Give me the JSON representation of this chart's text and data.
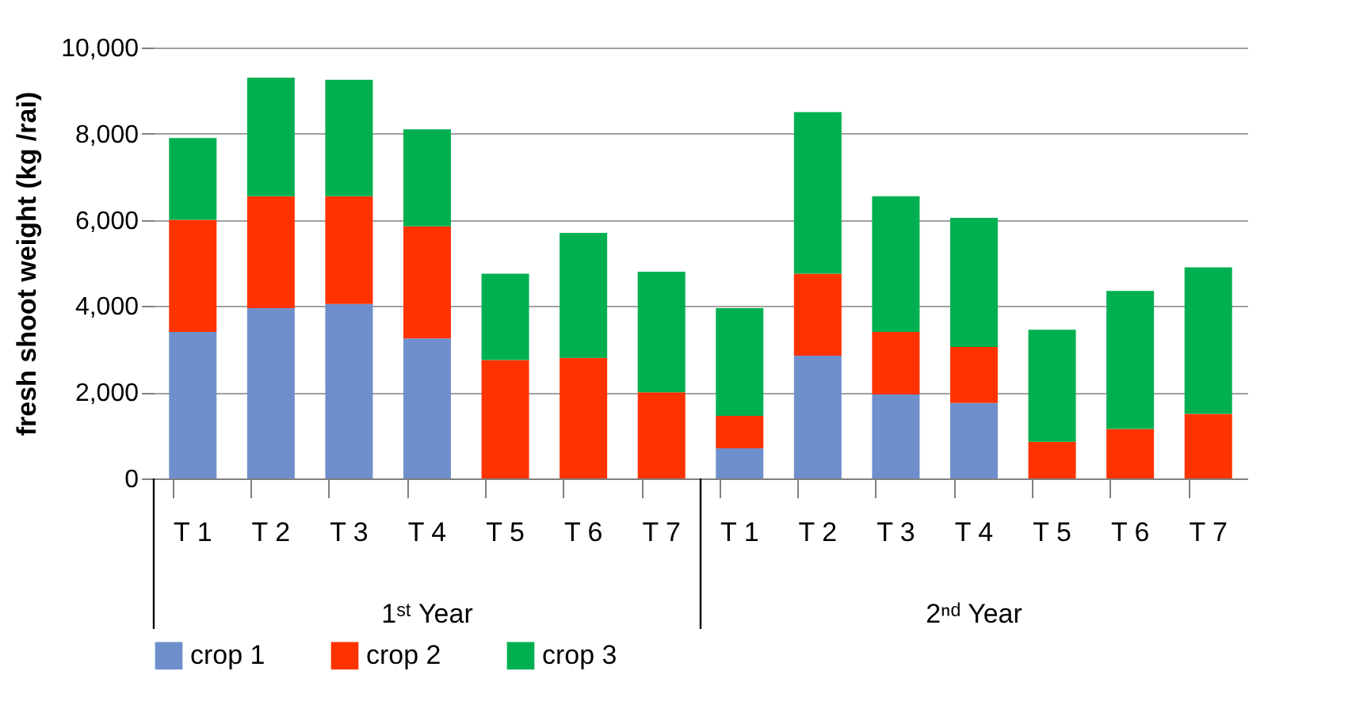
{
  "chart_data": {
    "type": "bar",
    "stacked": true,
    "ylabel": "fresh shoot weight  (kg /rai)",
    "categories": [
      "T 1",
      "T 2",
      "T 3",
      "T 4",
      "T 5",
      "T 6",
      "T 7",
      "T 1",
      "T 2",
      "T 3",
      "T 4",
      "T 5",
      "T 6",
      "T 7"
    ],
    "series": [
      {
        "name": "crop 1",
        "color": "#6f8fcc",
        "values": [
          3400,
          3950,
          4050,
          3250,
          0,
          0,
          0,
          700,
          2850,
          1950,
          1750,
          0,
          0,
          0
        ]
      },
      {
        "name": "crop 2",
        "color": "#ff3300",
        "values": [
          2600,
          2600,
          2500,
          2600,
          2750,
          2800,
          2000,
          750,
          1900,
          1450,
          1300,
          850,
          1150,
          1500
        ]
      },
      {
        "name": "crop 3",
        "color": "#00b050",
        "values": [
          1900,
          2750,
          2700,
          2250,
          2000,
          2900,
          2800,
          2500,
          3750,
          3150,
          3000,
          2600,
          3200,
          3400
        ]
      }
    ],
    "ylim": [
      0,
      10000
    ],
    "yticks": [
      {
        "value": 0,
        "label": "0"
      },
      {
        "value": 2000,
        "label": "2,000"
      },
      {
        "value": 4000,
        "label": "4,000"
      },
      {
        "value": 6000,
        "label": "6,000"
      },
      {
        "value": 8000,
        "label": "8,000"
      },
      {
        "value": 10000,
        "label": "10,000"
      }
    ],
    "grid": "y",
    "legend": "bottom",
    "annotations": [
      "1ˢᵗ Year",
      "2ⁿᵈ Year"
    ]
  }
}
